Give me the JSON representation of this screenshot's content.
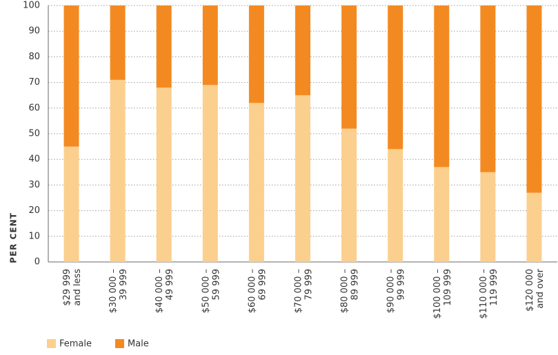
{
  "chart_data": {
    "type": "stacked-bar",
    "y_label": "PER CENT",
    "categories": [
      [
        "$29 999",
        "and less"
      ],
      [
        "$30 000 –",
        "39 999"
      ],
      [
        "$40 000 –",
        "49 999"
      ],
      [
        "$50 000 –",
        "59 999"
      ],
      [
        "$60 000 –",
        "69 999"
      ],
      [
        "$70 000 –",
        "79 999"
      ],
      [
        "$80 000 –",
        "89 999"
      ],
      [
        "$90 000 –",
        "99 999"
      ],
      [
        "$100 000 –",
        "109 999"
      ],
      [
        "$110 000 –",
        "119 999"
      ],
      [
        "$120 000",
        "and over"
      ]
    ],
    "series": [
      {
        "name": "Female",
        "color": "#fbcf8e",
        "values": [
          45,
          71,
          68,
          69,
          62,
          65,
          52,
          44,
          37,
          35,
          27
        ]
      },
      {
        "name": "Male",
        "color": "#f38a21",
        "values": [
          55,
          29,
          32,
          31,
          38,
          35,
          48,
          56,
          63,
          65,
          73
        ]
      }
    ],
    "ylim": [
      0,
      100
    ],
    "yticks": [
      0,
      10,
      20,
      30,
      40,
      50,
      60,
      70,
      80,
      90,
      100
    ],
    "grid": true
  }
}
